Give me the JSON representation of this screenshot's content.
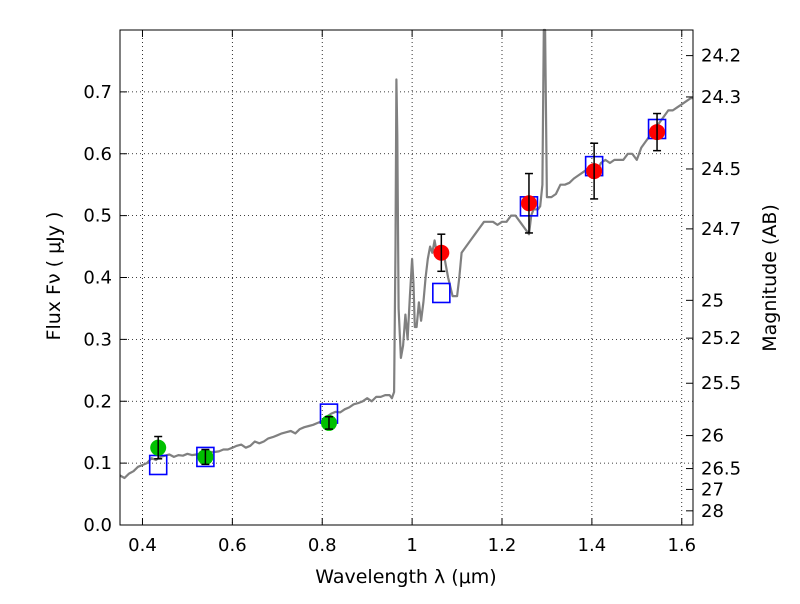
{
  "chart_data": {
    "type": "scatter",
    "xlabel": "Wavelength  λ (μm)",
    "ylabel": "Flux  Fν  ( μJy )",
    "y2label": "Magnitude (AB)",
    "xlim": [
      0.35,
      1.625
    ],
    "ylim": [
      0.0,
      0.8
    ],
    "grid": true,
    "x_ticks": [
      0.4,
      0.6,
      0.8,
      1.0,
      1.2,
      1.4,
      1.6
    ],
    "x_tick_labels": [
      "0.4",
      "0.6",
      "0.8",
      "1",
      "1.2",
      "1.4",
      "1.6"
    ],
    "y_ticks": [
      0.0,
      0.1,
      0.2,
      0.3,
      0.4,
      0.5,
      0.6,
      0.7
    ],
    "y_tick_labels": [
      "0.0",
      "0.1",
      "0.2",
      "0.3",
      "0.4",
      "0.5",
      "0.6",
      "0.7"
    ],
    "y2_ticks": [
      {
        "label": "24.2",
        "flux": 0.7586
      },
      {
        "label": "24.3",
        "flux": 0.6918
      },
      {
        "label": "24.5",
        "flux": 0.5754
      },
      {
        "label": "24.7",
        "flux": 0.4786
      },
      {
        "label": "25",
        "flux": 0.3631
      },
      {
        "label": "25.2",
        "flux": 0.302
      },
      {
        "label": "25.5",
        "flux": 0.2291
      },
      {
        "label": "26",
        "flux": 0.1445
      },
      {
        "label": "26.5",
        "flux": 0.0912
      },
      {
        "label": "27",
        "flux": 0.0575
      },
      {
        "label": "28",
        "flux": 0.0229
      }
    ],
    "colors": {
      "template": "#808080",
      "optical_points": "#00c000",
      "infrared_points": "#ff0000",
      "model_squares": "#0000ff",
      "error_bars": "#000000"
    },
    "series": [
      {
        "kind": "line",
        "x": [
          0.35,
          0.36,
          0.37,
          0.38,
          0.39,
          0.4,
          0.41,
          0.42,
          0.43,
          0.44,
          0.45,
          0.46,
          0.47,
          0.48,
          0.49,
          0.5,
          0.51,
          0.52,
          0.53,
          0.54,
          0.55,
          0.56,
          0.57,
          0.58,
          0.59,
          0.6,
          0.61,
          0.62,
          0.63,
          0.64,
          0.65,
          0.66,
          0.67,
          0.68,
          0.69,
          0.7,
          0.71,
          0.72,
          0.73,
          0.74,
          0.75,
          0.76,
          0.77,
          0.78,
          0.79,
          0.8,
          0.81,
          0.82,
          0.83,
          0.84,
          0.85,
          0.86,
          0.87,
          0.88,
          0.89,
          0.9,
          0.91,
          0.92,
          0.93,
          0.94,
          0.95,
          0.955,
          0.96,
          0.963,
          0.965,
          0.967,
          0.97,
          0.975,
          0.98,
          0.985,
          0.99,
          0.995,
          1.0,
          1.003,
          1.006,
          1.01,
          1.015,
          1.02,
          1.025,
          1.03,
          1.035,
          1.04,
          1.045,
          1.05,
          1.055,
          1.06,
          1.065,
          1.07,
          1.075,
          1.08,
          1.09,
          1.1,
          1.105,
          1.11,
          1.12,
          1.13,
          1.14,
          1.15,
          1.16,
          1.17,
          1.18,
          1.19,
          1.2,
          1.21,
          1.22,
          1.23,
          1.24,
          1.25,
          1.26,
          1.265,
          1.27,
          1.28,
          1.285,
          1.29,
          1.293,
          1.296,
          1.3,
          1.31,
          1.32,
          1.33,
          1.34,
          1.35,
          1.36,
          1.37,
          1.38,
          1.39,
          1.4,
          1.41,
          1.42,
          1.43,
          1.44,
          1.45,
          1.46,
          1.47,
          1.48,
          1.49,
          1.5,
          1.51,
          1.52,
          1.53,
          1.54,
          1.55,
          1.56,
          1.57,
          1.58,
          1.59,
          1.6,
          1.61,
          1.62,
          1.625
        ],
        "y": [
          0.08,
          0.076,
          0.083,
          0.087,
          0.094,
          0.097,
          0.1,
          0.108,
          0.105,
          0.11,
          0.112,
          0.114,
          0.11,
          0.113,
          0.112,
          0.115,
          0.113,
          0.114,
          0.116,
          0.114,
          0.118,
          0.118,
          0.119,
          0.122,
          0.122,
          0.125,
          0.128,
          0.13,
          0.125,
          0.128,
          0.135,
          0.132,
          0.135,
          0.14,
          0.142,
          0.145,
          0.148,
          0.15,
          0.152,
          0.148,
          0.155,
          0.158,
          0.16,
          0.162,
          0.165,
          0.168,
          0.175,
          0.18,
          0.183,
          0.182,
          0.187,
          0.19,
          0.195,
          0.197,
          0.2,
          0.205,
          0.2,
          0.207,
          0.207,
          0.21,
          0.21,
          0.205,
          0.215,
          0.45,
          0.72,
          0.63,
          0.35,
          0.27,
          0.29,
          0.34,
          0.3,
          0.37,
          0.43,
          0.39,
          0.32,
          0.32,
          0.36,
          0.33,
          0.36,
          0.4,
          0.43,
          0.45,
          0.44,
          0.46,
          0.44,
          0.45,
          0.43,
          0.44,
          0.42,
          0.4,
          0.37,
          0.37,
          0.4,
          0.44,
          0.45,
          0.46,
          0.47,
          0.48,
          0.49,
          0.49,
          0.49,
          0.485,
          0.49,
          0.49,
          0.5,
          0.5,
          0.49,
          0.48,
          0.47,
          0.5,
          0.51,
          0.51,
          0.515,
          0.55,
          0.8,
          0.8,
          0.53,
          0.53,
          0.535,
          0.55,
          0.55,
          0.553,
          0.56,
          0.565,
          0.57,
          0.575,
          0.58,
          0.57,
          0.585,
          0.59,
          0.585,
          0.59,
          0.59,
          0.59,
          0.6,
          0.6,
          0.59,
          0.61,
          0.62,
          0.63,
          0.64,
          0.65,
          0.66,
          0.67,
          0.67,
          0.675,
          0.68,
          0.685,
          0.69,
          0.69
        ]
      },
      {
        "kind": "points",
        "x": [
          0.435,
          0.54,
          0.815
        ],
        "y": [
          0.125,
          0.11,
          0.165
        ],
        "yerr": [
          0.018,
          0.012,
          0.01
        ]
      },
      {
        "kind": "points",
        "x": [
          1.065,
          1.26,
          1.405,
          1.545
        ],
        "y": [
          0.44,
          0.52,
          0.572,
          0.635
        ],
        "yerr": [
          0.03,
          0.048,
          0.045,
          0.03
        ]
      },
      {
        "kind": "model",
        "x": [
          0.435,
          0.54,
          0.815,
          1.065,
          1.26,
          1.405,
          1.545
        ],
        "y": [
          0.097,
          0.11,
          0.18,
          0.375,
          0.515,
          0.58,
          0.64
        ]
      }
    ]
  }
}
